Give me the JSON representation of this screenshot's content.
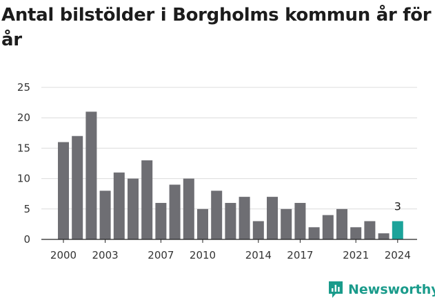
{
  "title": "Antal bilstölder i Borgholms kommun år för år",
  "brand": {
    "name": "Newsworthy",
    "icon": "newsworthy-logo-icon",
    "color": "#1a9b8b"
  },
  "colors": {
    "bar": "#6e6e73",
    "highlight": "#1ba39a",
    "grid": "#dcdcdc",
    "axis": "#222222"
  },
  "chart_data": {
    "type": "bar",
    "title": "Antal bilstölder i Borgholms kommun år för år",
    "xlabel": "",
    "ylabel": "",
    "categories": [
      "2000",
      "2001",
      "2002",
      "2003",
      "2004",
      "2005",
      "2006",
      "2007",
      "2008",
      "2009",
      "2010",
      "2011",
      "2012",
      "2013",
      "2014",
      "2015",
      "2016",
      "2017",
      "2018",
      "2019",
      "2020",
      "2021",
      "2022",
      "2023",
      "2024"
    ],
    "values": [
      16,
      17,
      21,
      8,
      11,
      10,
      13,
      6,
      9,
      10,
      5,
      8,
      6,
      7,
      3,
      7,
      5,
      6,
      2,
      4,
      5,
      2,
      3,
      1,
      3
    ],
    "highlight_index": 24,
    "data_labels": [
      {
        "category": "2024",
        "text": "3"
      }
    ],
    "ylim": [
      0,
      25
    ],
    "yticks": [
      0,
      5,
      10,
      15,
      20,
      25
    ],
    "xtick_labels": [
      "2000",
      "2003",
      "2007",
      "2010",
      "2014",
      "2017",
      "2021",
      "2024"
    ],
    "grid": true,
    "legend": "none"
  }
}
